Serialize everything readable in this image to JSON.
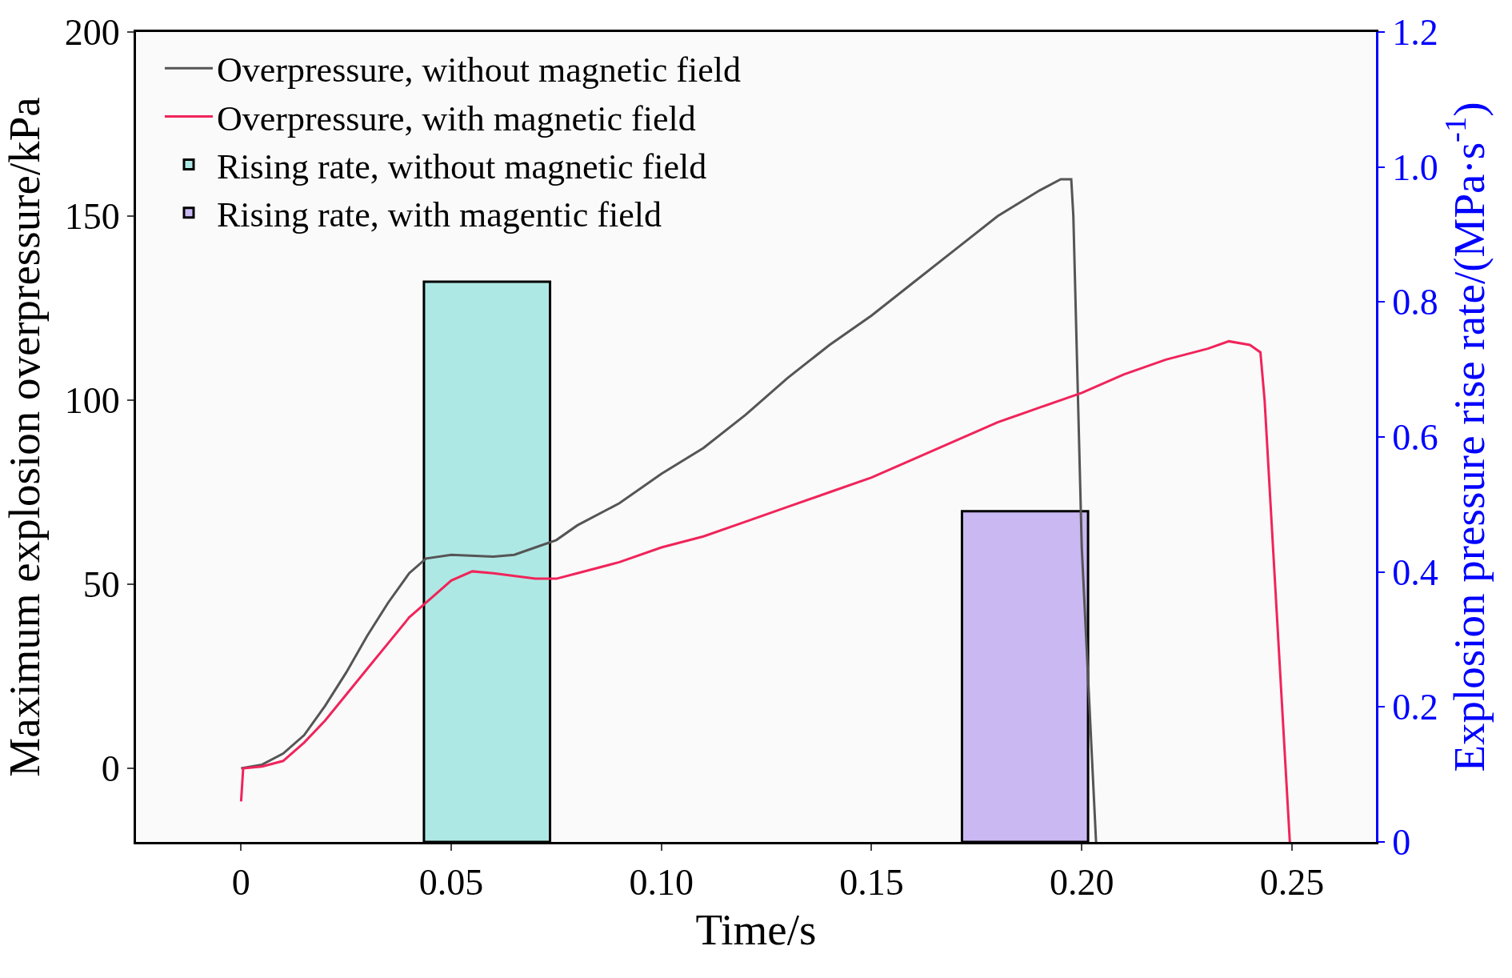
{
  "chart_data": {
    "type": "line",
    "xlabel": "Time/s",
    "ylabel": "Maximum explosion overpressure/kPa",
    "y2label": "Explosion pressure rise rate/(MPa·s$^{-1}$)",
    "xlim": [
      -0.025,
      0.27
    ],
    "xticks": [
      0,
      {
        "value": 0.05,
        "label": "0.05"
      },
      {
        "value": 0.1,
        "label": "0.10"
      },
      {
        "value": 0.15,
        "label": "0.15"
      },
      {
        "value": 0.2,
        "label": "0.20"
      },
      {
        "value": 0.25,
        "label": "0.25"
      }
    ],
    "ylim": [
      -20,
      200
    ],
    "yticks": [
      0,
      50,
      100,
      150,
      200
    ],
    "y2lim": [
      0,
      1.2
    ],
    "y2ticks": [
      0,
      0.2,
      0.4,
      0.6,
      0.8,
      {
        "value": 1,
        "label": "1.0"
      },
      1.2
    ],
    "legend": "top left",
    "series": [
      {
        "name": "Overpressure, without magnetic field",
        "color": "#555555",
        "x": [
          0,
          0.005,
          0.01,
          0.015,
          0.02,
          0.025,
          0.03,
          0.035,
          0.04,
          0.044,
          0.05,
          0.06,
          0.065,
          0.07,
          0.075,
          0.08,
          0.09,
          0.1,
          0.11,
          0.12,
          0.13,
          0.14,
          0.15,
          0.16,
          0.17,
          0.18,
          0.19,
          0.195,
          0.1975,
          0.198,
          0.2,
          0.2034
        ],
        "values": [
          0,
          1,
          4,
          9,
          17,
          26,
          36,
          45,
          53,
          57,
          58,
          57.5,
          58,
          60,
          62,
          66,
          72,
          80,
          87,
          96,
          106,
          115,
          123,
          132,
          141,
          150,
          157,
          160,
          160,
          150,
          60,
          -20
        ]
      },
      {
        "name": "Overpressure, with magnetic field",
        "color": "#f0245a",
        "x": [
          0,
          0.0005,
          0.005,
          0.01,
          0.015,
          0.02,
          0.025,
          0.03,
          0.035,
          0.04,
          0.045,
          0.05,
          0.055,
          0.06,
          0.07,
          0.075,
          0.08,
          0.09,
          0.1,
          0.11,
          0.12,
          0.13,
          0.14,
          0.15,
          0.16,
          0.17,
          0.18,
          0.19,
          0.2,
          0.21,
          0.22,
          0.23,
          0.235,
          0.24,
          0.2425,
          0.2435,
          0.2495
        ],
        "values": [
          -9,
          0,
          0.5,
          2,
          7,
          13,
          20,
          27,
          34,
          41,
          46,
          51,
          53.5,
          53,
          51.5,
          51.5,
          53,
          56,
          60,
          63,
          67,
          71,
          75,
          79,
          84,
          89,
          94,
          98,
          102,
          107,
          111,
          114,
          116,
          115,
          113,
          100,
          -20
        ]
      },
      {
        "name": "Rising rate, without magnetic field",
        "type": "bar",
        "axis": "y2",
        "color": "#aee8e4",
        "x": [
          0.0585
        ],
        "values": [
          0.83
        ]
      },
      {
        "name": "Rising rate, with magentic field",
        "type": "bar",
        "axis": "y2",
        "color": "#c9b8f2",
        "x": [
          0.1865
        ],
        "values": [
          0.49
        ]
      }
    ]
  }
}
